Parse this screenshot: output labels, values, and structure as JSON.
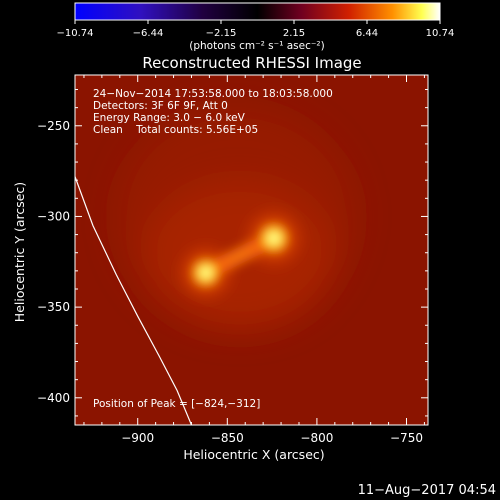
{
  "colorbar": {
    "ticks": [
      "−10.74",
      "−6.44",
      "−2.15",
      "2.15",
      "6.44",
      "10.74"
    ],
    "unit": "(photons cm⁻² s⁻¹ asec⁻²)",
    "colormap": "blue-black-red-yellow-white"
  },
  "image": {
    "title": "Reconstructed RHESSI Image",
    "info_lines": [
      "24−Nov−2014 17:53:58.000 to 18:03:58.000",
      "Detectors: 3F 6F 9F, Att 0",
      "Energy Range: 3.0 − 6.0 keV",
      "Clean    Total counts: 5.56E+05"
    ],
    "peak_label": "Position of Peak = [−824,−312]",
    "background_color": "#8b1400",
    "x_axis": {
      "label": "Heliocentric X (arcsec)",
      "range": [
        -935,
        -738
      ],
      "ticks": [
        {
          "value": -900,
          "label": "−900"
        },
        {
          "value": -850,
          "label": "−850"
        },
        {
          "value": -800,
          "label": "−800"
        },
        {
          "value": -750,
          "label": "−750"
        }
      ]
    },
    "y_axis": {
      "label": "Heliocentric Y (arcsec)",
      "range": [
        -415,
        -222
      ],
      "ticks": [
        {
          "value": -250,
          "label": "−250"
        },
        {
          "value": -300,
          "label": "−300"
        },
        {
          "value": -350,
          "label": "−350"
        },
        {
          "value": -400,
          "label": "−400"
        }
      ]
    },
    "sources": [
      {
        "x": -824,
        "y": -312,
        "peak": 1.0
      },
      {
        "x": -862,
        "y": -331,
        "peak": 0.95
      }
    ],
    "limb_curve": [
      [
        -935,
        -278
      ],
      [
        -925,
        -305
      ],
      [
        -912,
        -332
      ],
      [
        -900,
        -355
      ],
      [
        -888,
        -377
      ],
      [
        -878,
        -396
      ],
      [
        -870,
        -415
      ]
    ]
  },
  "footer": {
    "date": "11−Aug−2017 04:54"
  }
}
